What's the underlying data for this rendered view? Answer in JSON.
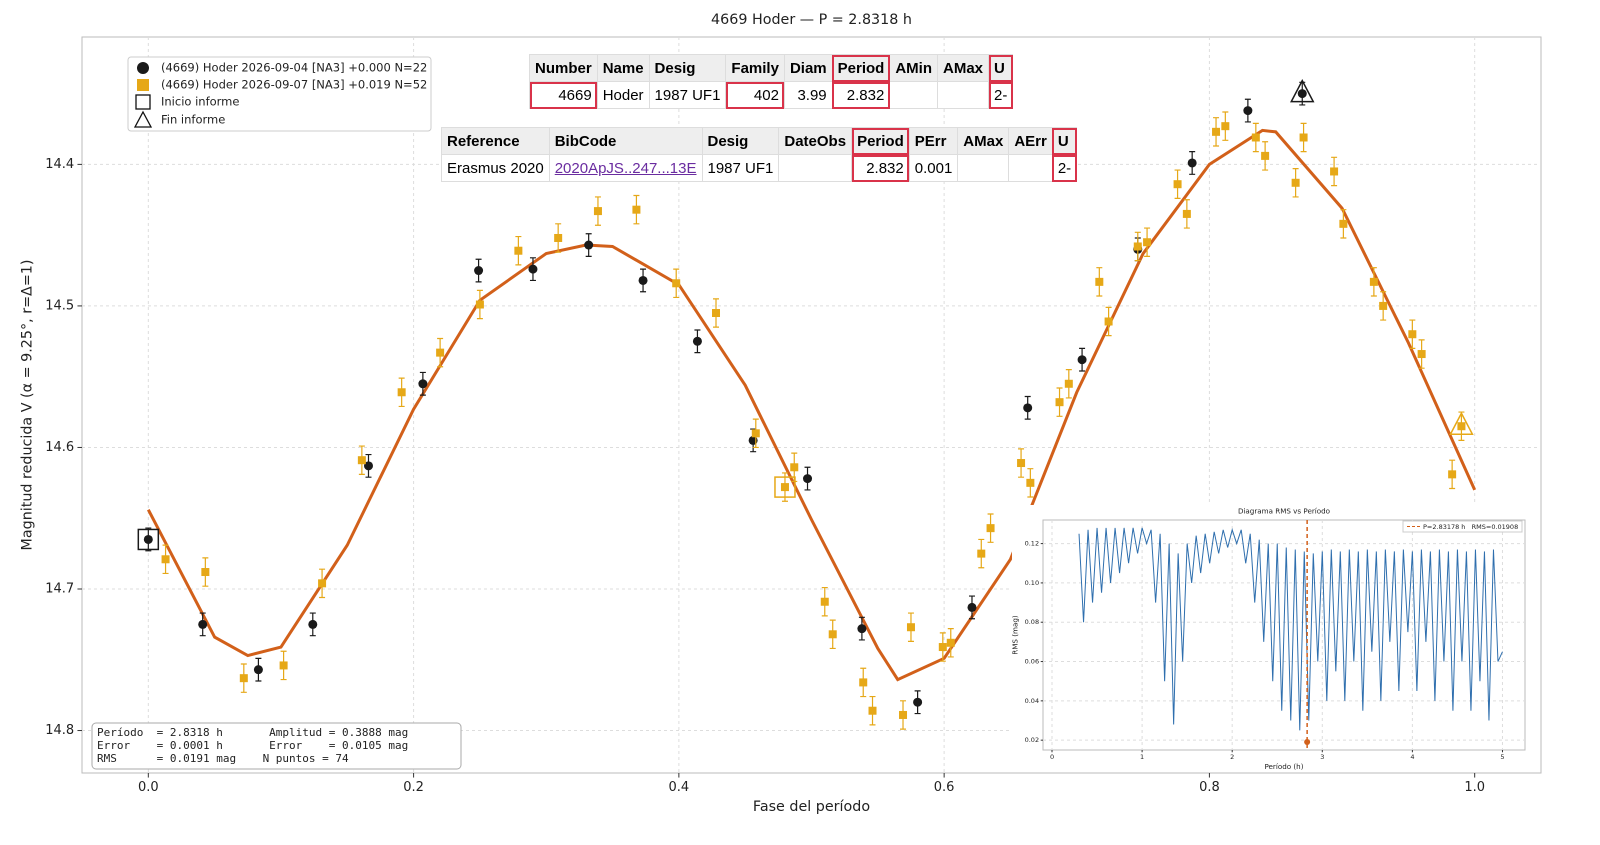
{
  "chart_data": [
    {
      "type": "scatter",
      "title": "4669 Hoder — P = 2.8318 h",
      "xlabel": "Fase del período",
      "ylabel": "Magnitud reducida V  (α = 9.25°, r=Δ=1)",
      "xlim": [
        -0.05,
        1.05
      ],
      "ylim": [
        14.31,
        14.83
      ],
      "y_inverted": true,
      "xticks": [
        {
          "value": 0,
          "label": "0.0"
        },
        0.2,
        0.4,
        0.6,
        0.8,
        {
          "value": 1,
          "label": "1.0"
        }
      ],
      "yticks": [
        14.4,
        14.5,
        14.6,
        14.7,
        14.8
      ],
      "grid": true,
      "legend": "upper left",
      "start_label": "Inicio informe",
      "end_label": "Fin informe",
      "series": [
        {
          "name": "(4669) Hoder 2026-09-04 [NA3] +0.000 N=22",
          "color": "#1a1a1a",
          "marker": "circle",
          "start_index": 0,
          "end_index": 21,
          "x": [
            0.0,
            0.041,
            0.083,
            0.124,
            0.166,
            0.207,
            0.249,
            0.29,
            0.332,
            0.373,
            0.414,
            0.456,
            0.497,
            0.538,
            0.58,
            0.621,
            0.663,
            0.704,
            0.746,
            0.787,
            0.829,
            0.87
          ],
          "values": [
            14.665,
            14.725,
            14.757,
            14.725,
            14.613,
            14.555,
            14.475,
            14.474,
            14.457,
            14.482,
            14.525,
            14.595,
            14.622,
            14.728,
            14.78,
            14.713,
            14.572,
            14.538,
            14.46,
            14.399,
            14.362,
            14.35
          ],
          "errors": [
            0.008,
            0.008,
            0.008,
            0.008,
            0.008,
            0.008,
            0.008,
            0.008,
            0.008,
            0.008,
            0.008,
            0.008,
            0.008,
            0.008,
            0.008,
            0.008,
            0.008,
            0.008,
            0.008,
            0.008,
            0.008,
            0.008
          ]
        },
        {
          "name": "(4669) Hoder 2026-09-07 [NA3] +0.019 N=52",
          "color": "#e6a817",
          "marker": "square",
          "start_index": 16,
          "end_index": 51,
          "x": [
            0.013,
            0.043,
            0.072,
            0.102,
            0.131,
            0.161,
            0.191,
            0.22,
            0.25,
            0.279,
            0.309,
            0.339,
            0.368,
            0.398,
            0.428,
            0.458,
            0.48,
            0.487,
            0.51,
            0.516,
            0.539,
            0.546,
            0.569,
            0.575,
            0.599,
            0.605,
            0.628,
            0.635,
            0.658,
            0.665,
            0.687,
            0.694,
            0.717,
            0.724,
            0.746,
            0.753,
            0.776,
            0.783,
            0.805,
            0.812,
            0.835,
            0.842,
            0.865,
            0.871,
            0.894,
            0.901,
            0.924,
            0.931,
            0.953,
            0.96,
            0.983,
            0.99
          ],
          "values": [
            14.679,
            14.688,
            14.763,
            14.754,
            14.696,
            14.609,
            14.561,
            14.533,
            14.499,
            14.461,
            14.452,
            14.433,
            14.432,
            14.484,
            14.505,
            14.59,
            14.628,
            14.614,
            14.709,
            14.732,
            14.766,
            14.786,
            14.789,
            14.727,
            14.741,
            14.738,
            14.675,
            14.657,
            14.611,
            14.625,
            14.568,
            14.555,
            14.483,
            14.511,
            14.458,
            14.455,
            14.414,
            14.435,
            14.377,
            14.373,
            14.381,
            14.394,
            14.413,
            14.381,
            14.405,
            14.442,
            14.483,
            14.5,
            14.52,
            14.534,
            14.619,
            14.585
          ],
          "errors": [
            0.01,
            0.01,
            0.01,
            0.01,
            0.01,
            0.01,
            0.01,
            0.01,
            0.01,
            0.01,
            0.01,
            0.01,
            0.01,
            0.01,
            0.01,
            0.01,
            0.01,
            0.01,
            0.01,
            0.01,
            0.01,
            0.01,
            0.01,
            0.01,
            0.01,
            0.01,
            0.01,
            0.01,
            0.01,
            0.01,
            0.01,
            0.01,
            0.01,
            0.01,
            0.01,
            0.01,
            0.01,
            0.01,
            0.01,
            0.01,
            0.01,
            0.01,
            0.01,
            0.01,
            0.01,
            0.01,
            0.01,
            0.01,
            0.01,
            0.01,
            0.01,
            0.01
          ]
        }
      ],
      "fit": {
        "color": "#d2601a",
        "x": [
          0.0,
          0.05,
          0.075,
          0.1,
          0.15,
          0.2,
          0.25,
          0.3,
          0.33,
          0.35,
          0.4,
          0.45,
          0.5,
          0.55,
          0.565,
          0.6,
          0.65,
          0.7,
          0.75,
          0.8,
          0.84,
          0.85,
          0.9,
          0.95,
          1.0
        ],
        "values": [
          14.644,
          14.734,
          14.747,
          14.741,
          14.669,
          14.573,
          14.496,
          14.463,
          14.457,
          14.458,
          14.485,
          14.556,
          14.651,
          14.742,
          14.764,
          14.749,
          14.679,
          14.561,
          14.463,
          14.4,
          14.376,
          14.377,
          14.431,
          14.526,
          14.63
        ]
      },
      "stats_text": [
        "Período  = 2.8318 h       Amplitud = 0.3888 mag",
        "Error    = 0.0001 h       Error    = 0.0105 mag",
        "RMS      = 0.0191 mag    N puntos = 74"
      ]
    },
    {
      "type": "line",
      "title": "Diagrama RMS vs Período",
      "xlabel": "Período (h)",
      "ylabel": "RMS (mag)",
      "xlim": [
        -0.1,
        5.25
      ],
      "ylim": [
        0.015,
        0.132
      ],
      "xticks": [
        0,
        1,
        2,
        3,
        4,
        5
      ],
      "yticks": [
        0.02,
        0.04,
        0.06,
        0.08,
        {
          "value": 0.1,
          "label": "0.10"
        },
        0.12
      ],
      "grid": true,
      "series": [
        {
          "color": "#2f6fae",
          "x": [
            0.3,
            0.35,
            0.4,
            0.45,
            0.5,
            0.55,
            0.6,
            0.65,
            0.7,
            0.75,
            0.8,
            0.85,
            0.9,
            0.95,
            1.0,
            1.05,
            1.1,
            1.15,
            1.2,
            1.25,
            1.3,
            1.35,
            1.4,
            1.45,
            1.5,
            1.55,
            1.6,
            1.65,
            1.7,
            1.75,
            1.8,
            1.85,
            1.9,
            1.95,
            2.0,
            2.05,
            2.1,
            2.15,
            2.2,
            2.25,
            2.3,
            2.35,
            2.4,
            2.45,
            2.5,
            2.55,
            2.6,
            2.65,
            2.7,
            2.75,
            2.8,
            2.85,
            2.9,
            2.95,
            3.0,
            3.05,
            3.1,
            3.15,
            3.2,
            3.25,
            3.3,
            3.35,
            3.4,
            3.45,
            3.5,
            3.55,
            3.6,
            3.65,
            3.7,
            3.75,
            3.8,
            3.85,
            3.9,
            3.95,
            4.0,
            4.05,
            4.1,
            4.15,
            4.2,
            4.25,
            4.3,
            4.35,
            4.4,
            4.45,
            4.5,
            4.55,
            4.6,
            4.65,
            4.7,
            4.75,
            4.8,
            4.85,
            4.9,
            4.95,
            5.0
          ],
          "values": [
            0.125,
            0.08,
            0.127,
            0.09,
            0.128,
            0.095,
            0.128,
            0.1,
            0.128,
            0.105,
            0.128,
            0.11,
            0.128,
            0.115,
            0.128,
            0.12,
            0.127,
            0.09,
            0.125,
            0.05,
            0.12,
            0.028,
            0.115,
            0.06,
            0.12,
            0.1,
            0.124,
            0.105,
            0.125,
            0.11,
            0.126,
            0.115,
            0.127,
            0.118,
            0.127,
            0.12,
            0.127,
            0.11,
            0.125,
            0.09,
            0.122,
            0.07,
            0.12,
            0.05,
            0.12,
            0.035,
            0.118,
            0.03,
            0.117,
            0.025,
            0.116,
            0.03,
            0.115,
            0.06,
            0.116,
            0.04,
            0.117,
            0.055,
            0.116,
            0.04,
            0.117,
            0.06,
            0.116,
            0.035,
            0.117,
            0.065,
            0.116,
            0.04,
            0.117,
            0.07,
            0.116,
            0.045,
            0.117,
            0.075,
            0.116,
            0.045,
            0.117,
            0.07,
            0.116,
            0.04,
            0.117,
            0.06,
            0.116,
            0.035,
            0.117,
            0.06,
            0.116,
            0.035,
            0.117,
            0.05,
            0.116,
            0.03,
            0.117,
            0.06,
            0.065
          ]
        }
      ],
      "best": {
        "x": 2.83178,
        "y": 0.01908,
        "color": "#d2601a",
        "label": "P=2.83178 h   RMS=0.01908"
      }
    }
  ],
  "tables": [
    {
      "headers": [
        "Number",
        "Name",
        "Desig",
        "Family",
        "Diam",
        "Period",
        "AMin",
        "AMax",
        "U"
      ],
      "rows": [
        [
          "4669",
          "Hoder",
          "1987 UF1",
          "402",
          "3.99",
          "2.832",
          null,
          null,
          "2-"
        ]
      ]
    },
    {
      "headers": [
        "Reference",
        "BibCode",
        "Desig",
        "DateObs",
        "Period",
        "PErr",
        "AMax",
        "AErr",
        "U"
      ],
      "rows": [
        [
          "Erasmus 2020",
          "2020ApJS..247...13E",
          "1987 UF1",
          null,
          "2.832",
          "0.001",
          null,
          null,
          "2-"
        ]
      ]
    }
  ]
}
